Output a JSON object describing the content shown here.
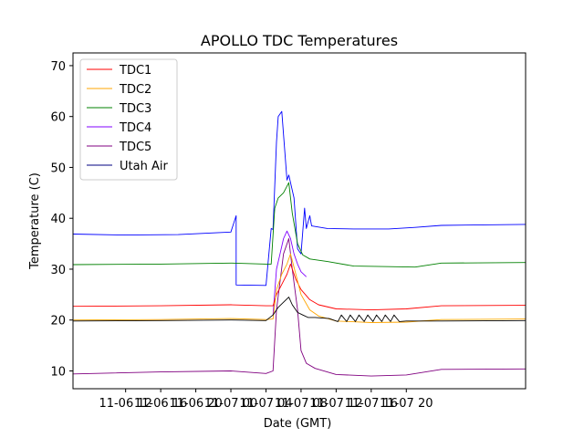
{
  "chart_data": {
    "type": "line",
    "title": "APOLLO TDC Temperatures",
    "xlabel": "Date (GMT)",
    "ylabel": "Temperature (C)",
    "xlim": [
      7.0,
      32.8
    ],
    "ylim": [
      6.5,
      72.5
    ],
    "grid": false,
    "legend_position": "top-left",
    "x_unit": "hours since 2020-11-06 00:00 GMT (approx.)",
    "x_ticks": [
      {
        "value": 10,
        "label": "11-06 12"
      },
      {
        "value": 12,
        "label": "11-06 16"
      },
      {
        "value": 14,
        "label": "11-06 20"
      },
      {
        "value": 16,
        "label": "11-07 00"
      },
      {
        "value": 18,
        "label": "11-07 04"
      },
      {
        "value": 20,
        "label": "11-07 08"
      },
      {
        "value": 22,
        "label": "11-07 12"
      },
      {
        "value": 24,
        "label": "11-07 16"
      },
      {
        "value": 26,
        "label": "11-07 20"
      }
    ],
    "y_ticks": [
      10,
      20,
      30,
      40,
      50,
      60,
      70
    ],
    "series": [
      {
        "name": "Utah Air",
        "color": "#0000ff",
        "x": [
          7.0,
          10.0,
          13.0,
          16.0,
          16.3,
          16.3,
          18.0,
          18.3,
          18.4,
          18.6,
          18.7,
          18.9,
          19.2,
          19.3,
          19.6,
          19.8,
          20.0,
          20.2,
          20.3,
          20.5,
          20.6,
          21.5,
          23.0,
          25.0,
          26.5,
          28.0,
          32.8
        ],
        "y": [
          36.9,
          36.7,
          36.8,
          37.3,
          40.5,
          26.9,
          26.8,
          38.0,
          37.8,
          55.0,
          60.0,
          61.0,
          47.5,
          48.5,
          44.0,
          34.0,
          33.0,
          42.0,
          38.0,
          40.5,
          38.5,
          38.0,
          37.9,
          37.9,
          38.2,
          38.6,
          38.8
        ]
      },
      {
        "name": "TDC3",
        "color": "#008000",
        "x": [
          7.0,
          12.0,
          16.0,
          18.0,
          18.3,
          18.5,
          18.7,
          19.0,
          19.3,
          19.5,
          19.8,
          20.1,
          20.5,
          21.5,
          23.0,
          25.0,
          26.5,
          28.0,
          32.8
        ],
        "y": [
          30.9,
          31.0,
          31.2,
          31.0,
          31.0,
          42.0,
          44.0,
          45.0,
          47.0,
          41.0,
          35.0,
          32.8,
          32.0,
          31.5,
          30.6,
          30.5,
          30.4,
          31.2,
          31.3
        ]
      },
      {
        "name": "TDC4",
        "color": "#8000ff",
        "x": [
          18.4,
          18.6,
          18.8,
          19.0,
          19.2,
          19.4,
          19.6,
          19.8,
          20.0,
          20.3
        ],
        "y": [
          21.0,
          30.0,
          33.0,
          36.0,
          37.5,
          36.0,
          33.0,
          31.0,
          29.5,
          28.5
        ]
      },
      {
        "name": "TDC5",
        "color": "#800080",
        "x": [
          7.0,
          12.0,
          16.0,
          18.0,
          18.4,
          18.6,
          19.0,
          19.3,
          19.5,
          19.8,
          20.0,
          20.3,
          20.8,
          22.0,
          24.0,
          26.0,
          28.0,
          32.8
        ],
        "y": [
          9.4,
          9.8,
          10.0,
          9.5,
          10.0,
          22.0,
          33.0,
          36.0,
          30.0,
          22.0,
          14.0,
          11.5,
          10.5,
          9.3,
          9.0,
          9.2,
          10.3,
          10.4
        ]
      },
      {
        "name": "TDC1",
        "color": "#ff0000",
        "x": [
          7.0,
          12.0,
          16.0,
          18.0,
          18.4,
          18.6,
          18.9,
          19.2,
          19.4,
          19.7,
          20.0,
          20.5,
          21.0,
          22.0,
          24.0,
          26.0,
          28.0,
          32.8
        ],
        "y": [
          22.7,
          22.8,
          23.0,
          22.8,
          22.8,
          25.0,
          27.0,
          29.0,
          31.0,
          28.0,
          26.0,
          24.0,
          23.0,
          22.2,
          22.0,
          22.2,
          22.8,
          22.9
        ]
      },
      {
        "name": "TDC2",
        "color": "#ffa500",
        "x": [
          7.0,
          12.0,
          16.0,
          18.0,
          18.4,
          18.6,
          18.9,
          19.2,
          19.4,
          19.7,
          20.0,
          20.5,
          21.0,
          22.0,
          24.0,
          26.0,
          28.0,
          32.8
        ],
        "y": [
          20.0,
          20.1,
          20.3,
          20.1,
          20.2,
          26.0,
          29.0,
          31.0,
          33.0,
          29.0,
          25.0,
          22.0,
          20.8,
          19.8,
          19.5,
          19.6,
          20.1,
          20.2
        ]
      },
      {
        "name": "Utah Air",
        "color": "#000000",
        "x": [
          7.0,
          12.0,
          16.0,
          18.0,
          18.4,
          18.7,
          19.0,
          19.3,
          19.5,
          19.8,
          20.1,
          20.4,
          20.8,
          21.6,
          22.1,
          22.3,
          22.6,
          22.8,
          23.1,
          23.3,
          23.6,
          23.8,
          24.1,
          24.3,
          24.6,
          24.8,
          25.1,
          25.3,
          25.6,
          26.0,
          28.0,
          32.8
        ],
        "y": [
          19.8,
          19.9,
          20.0,
          19.9,
          21.0,
          22.5,
          23.5,
          24.5,
          23.0,
          21.5,
          21.0,
          20.5,
          20.5,
          20.3,
          19.7,
          21.0,
          19.7,
          21.0,
          19.7,
          21.0,
          19.7,
          21.0,
          19.7,
          21.0,
          19.7,
          21.0,
          19.7,
          21.0,
          19.7,
          19.8,
          19.8,
          19.9
        ]
      }
    ],
    "legend": [
      {
        "name": "TDC1",
        "color": "#ff0000"
      },
      {
        "name": "TDC2",
        "color": "#ffa500"
      },
      {
        "name": "TDC3",
        "color": "#008000"
      },
      {
        "name": "TDC4",
        "color": "#8000ff"
      },
      {
        "name": "TDC5",
        "color": "#800080"
      },
      {
        "name": "Utah Air",
        "color": "#000080"
      }
    ]
  }
}
